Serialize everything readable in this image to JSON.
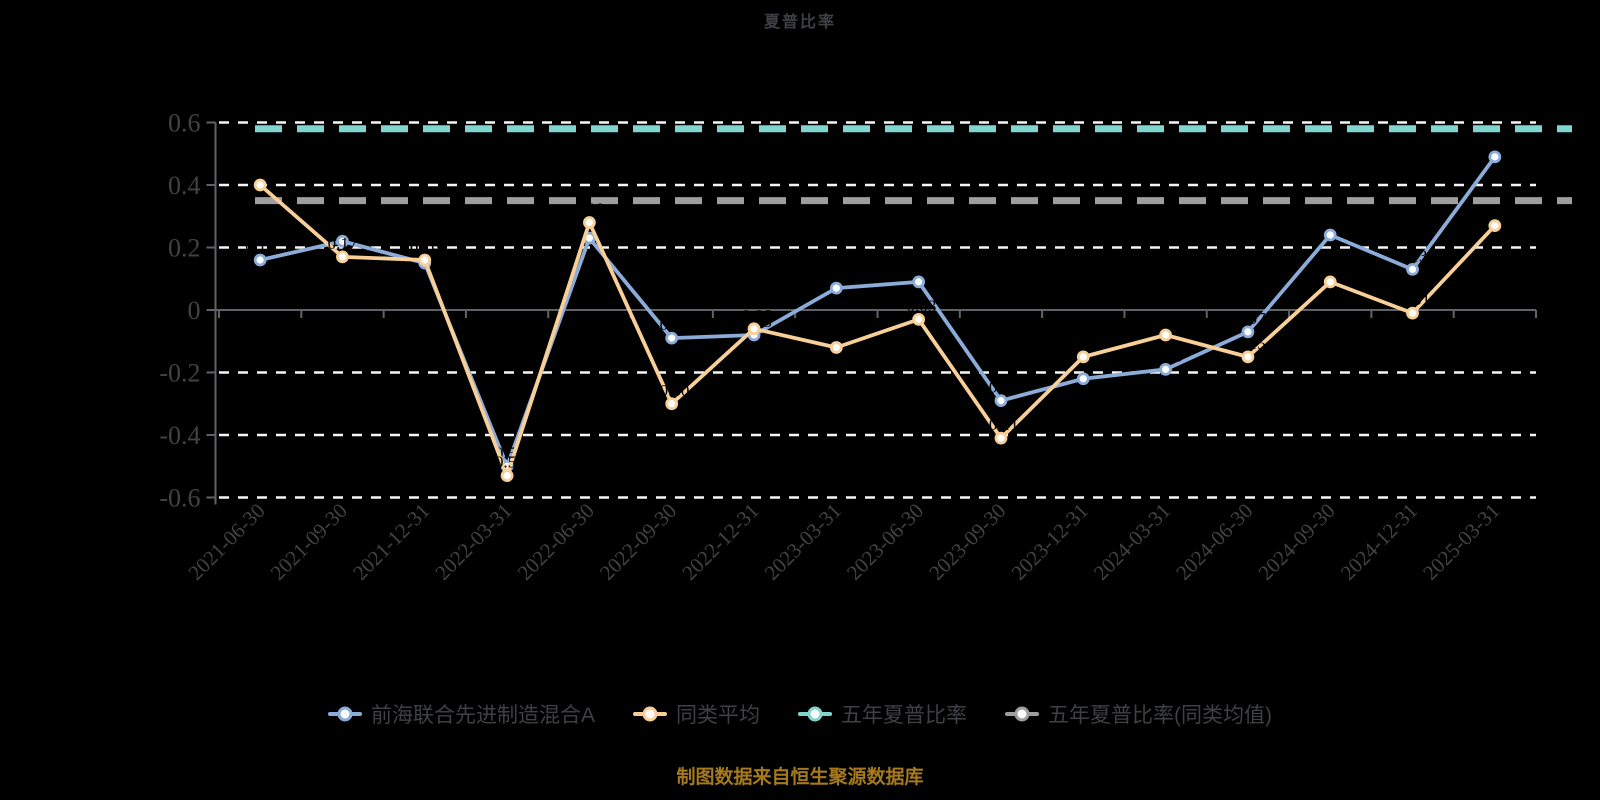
{
  "title": "夏普比率",
  "caption": "制图数据来自恒生聚源数据库",
  "legend": {
    "items": [
      {
        "label": "前海联合先进制造混合A",
        "color": "#8babd8"
      },
      {
        "label": "同类平均",
        "color": "#f7cf97"
      },
      {
        "label": "五年夏普比率",
        "color": "#7fd6ce"
      },
      {
        "label": "五年夏普比率(同类均值)",
        "color": "#9e9e9e"
      }
    ]
  },
  "y_axis": {
    "ticks": [
      "0.6",
      "0.4",
      "0.2",
      "0",
      "-0.2",
      "-0.4",
      "-0.6"
    ],
    "tick_values": [
      0.6,
      0.4,
      0.2,
      0,
      -0.2,
      -0.4,
      -0.6
    ]
  },
  "colors": {
    "background": "#000000",
    "title_text": "#3d4044",
    "axis_text": "#424242",
    "axis_line": "#5f6368",
    "gridline": "#f5f5f5",
    "series_fund": "#8babd8",
    "series_category_avg": "#f7cf97",
    "ref_5y": "#7fd6ce",
    "ref_5y_avg": "#9e9e9e",
    "data_label": "#000000",
    "caption_text": "#a5791c"
  },
  "chart_data": {
    "type": "line",
    "title": "夏普比率",
    "xlabel": "",
    "ylabel": "",
    "ylim": [
      -0.6,
      0.6
    ],
    "grid": "horizontal-dashed-white",
    "legend_position": "bottom",
    "categories": [
      "2021-06-30",
      "2021-09-30",
      "2021-12-31",
      "2022-03-31",
      "2022-06-30",
      "2022-09-30",
      "2022-12-31",
      "2023-03-31",
      "2023-06-30",
      "2023-09-30",
      "2023-12-31",
      "2024-03-31",
      "2024-06-30",
      "2024-09-30",
      "2024-12-31",
      "2025-03-31"
    ],
    "series": [
      {
        "name": "前海联合先进制造混合A",
        "color": "#8babd8",
        "values": [
          0.16,
          0.22,
          0.15,
          -0.5,
          0.23,
          -0.09,
          -0.08,
          0.07,
          0.09,
          -0.29,
          -0.22,
          -0.19,
          -0.07,
          0.24,
          0.13,
          0.49
        ]
      },
      {
        "name": "同类平均",
        "color": "#f7cf97",
        "values": [
          0.4,
          0.17,
          0.16,
          -0.53,
          0.28,
          -0.3,
          -0.06,
          -0.12,
          -0.03,
          -0.41,
          -0.15,
          -0.08,
          -0.15,
          0.09,
          -0.01,
          0.27
        ]
      }
    ],
    "ref_lines": [
      {
        "name": "五年夏普比率",
        "color": "#7fd6ce",
        "value": 0.58
      },
      {
        "name": "五年夏普比率(同类均值)",
        "color": "#9e9e9e",
        "value": 0.35
      }
    ]
  }
}
